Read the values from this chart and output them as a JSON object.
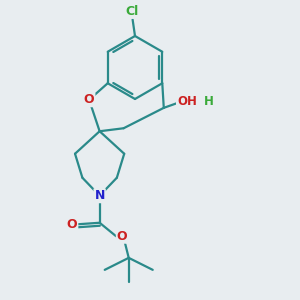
{
  "background_color": "#e8edf0",
  "bond_color": "#2a8a8a",
  "atom_colors": {
    "Cl": "#3aaa3a",
    "O": "#cc2222",
    "N": "#2222cc",
    "H": "#3aaa3a",
    "C": "#2a8a8a"
  },
  "figsize": [
    3.0,
    3.0
  ],
  "dpi": 100
}
